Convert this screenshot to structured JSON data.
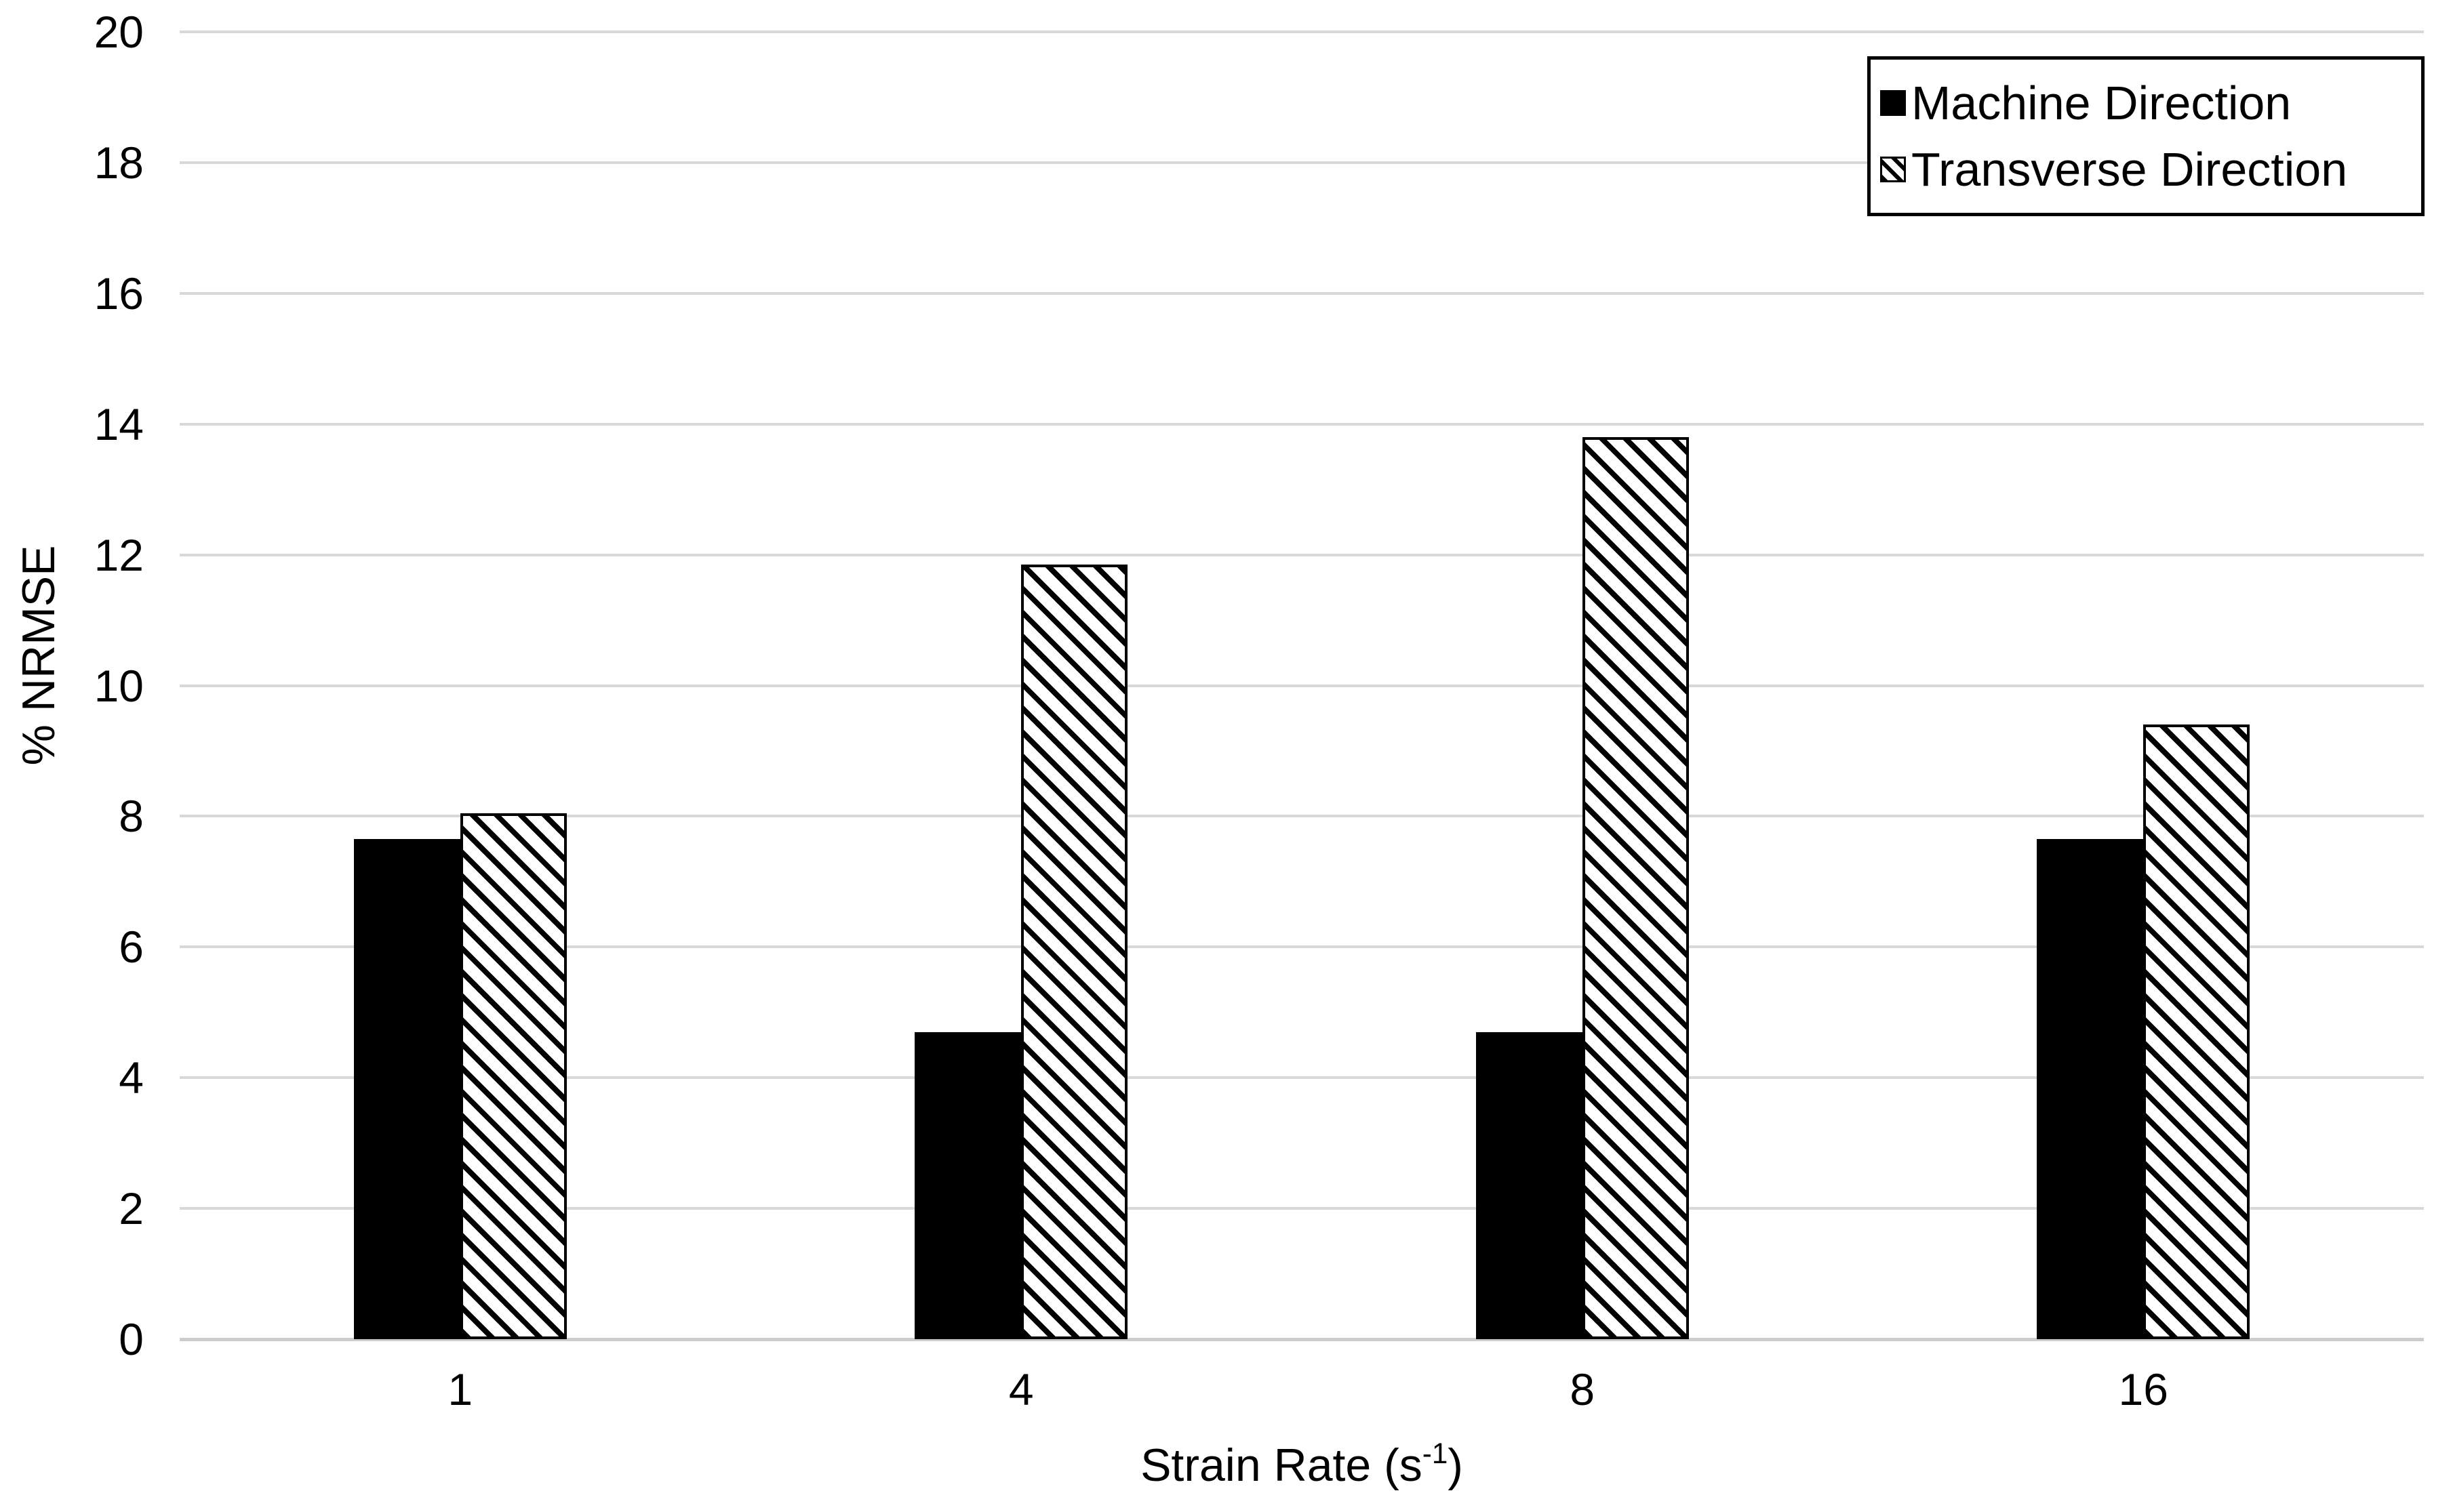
{
  "chart_data": {
    "type": "bar",
    "title": "",
    "categories": [
      "1",
      "4",
      "8",
      "16"
    ],
    "series": [
      {
        "name": "Machine Direction",
        "pattern": "solid-black",
        "values": [
          7.65,
          4.7,
          4.7,
          7.65
        ]
      },
      {
        "name": "Transverse Direction",
        "pattern": "diagonal-hatch",
        "values": [
          8.05,
          11.85,
          13.8,
          9.4
        ]
      }
    ],
    "xlabel": {
      "text": "Strain Rate (s",
      "sup": "-1",
      "suffix": ")"
    },
    "ylabel": "% NRMSE",
    "ylim": [
      0,
      20
    ],
    "yticks": [
      0,
      2,
      4,
      6,
      8,
      10,
      12,
      14,
      16,
      18,
      20
    ],
    "grid": "horizontal-light-gray",
    "legend_position": "top-right"
  },
  "legend": {
    "items": [
      {
        "label": "Machine Direction",
        "swatch": "solid-black-square"
      },
      {
        "label": "Transverse Direction",
        "swatch": "hatched-square"
      }
    ]
  },
  "colors": {
    "bar_fill": "#000000",
    "hatch_foreground": "#000000",
    "hatch_background": "#ffffff",
    "gridline": "#d9d9d9",
    "axis_line": "#cccccc",
    "text": "#000000",
    "legend_border": "#000000",
    "legend_background": "#ffffff"
  }
}
